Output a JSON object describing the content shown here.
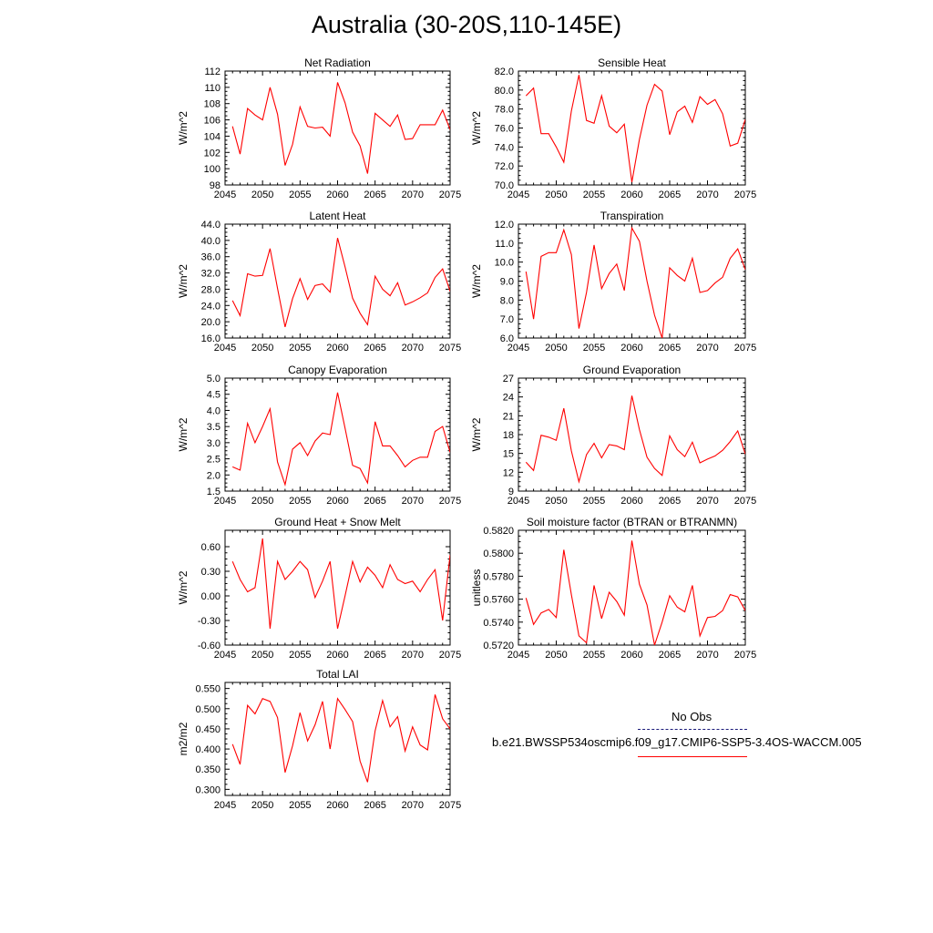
{
  "figure_title": "Australia (30-20S,110-145E)",
  "legend": {
    "obs_label": "No Obs",
    "model_label": "b.e21.BWSSP534oscmip6.f09_g17.CMIP6-SSP5-3.4OS-WACCM.005",
    "obs_color": "#1a1a7a",
    "model_color": "#ff0000"
  },
  "chart_data": [
    {
      "type": "line",
      "title": "Net Radiation",
      "ylabel": "W/m^2",
      "xlim": [
        2045,
        2075
      ],
      "ylim": [
        98,
        112
      ],
      "xticks": [
        2045,
        2050,
        2055,
        2060,
        2065,
        2070,
        2075
      ],
      "yticks": [
        "98",
        "100",
        "102",
        "104",
        "106",
        "108",
        "110",
        "112"
      ],
      "x": [
        2046,
        2047,
        2048,
        2049,
        2050,
        2051,
        2052,
        2053,
        2054,
        2055,
        2056,
        2057,
        2058,
        2059,
        2060,
        2061,
        2062,
        2063,
        2064,
        2065,
        2066,
        2067,
        2068,
        2069,
        2070,
        2071,
        2072,
        2073,
        2074,
        2075
      ],
      "series": [
        {
          "values": [
            105.2,
            101.8,
            107.4,
            106.6,
            106.0,
            110.0,
            106.7,
            100.4,
            103.0,
            107.6,
            105.2,
            105.0,
            105.1,
            104.0,
            110.6,
            108.1,
            104.5,
            102.8,
            99.4,
            106.8,
            106.0,
            105.2,
            106.6,
            103.6,
            103.7,
            105.4,
            105.4,
            105.4,
            107.2,
            104.8
          ]
        }
      ]
    },
    {
      "type": "line",
      "title": "Sensible Heat",
      "ylabel": "W/m^2",
      "xlim": [
        2045,
        2075
      ],
      "ylim": [
        70,
        82
      ],
      "xticks": [
        2045,
        2050,
        2055,
        2060,
        2065,
        2070,
        2075
      ],
      "yticks": [
        "70.0",
        "72.0",
        "74.0",
        "76.0",
        "78.0",
        "80.0",
        "82.0"
      ],
      "x": [
        2046,
        2047,
        2048,
        2049,
        2050,
        2051,
        2052,
        2053,
        2054,
        2055,
        2056,
        2057,
        2058,
        2059,
        2060,
        2061,
        2062,
        2063,
        2064,
        2065,
        2066,
        2067,
        2068,
        2069,
        2070,
        2071,
        2072,
        2073,
        2074,
        2075
      ],
      "series": [
        {
          "values": [
            79.4,
            80.2,
            75.4,
            75.4,
            74.0,
            72.4,
            77.8,
            81.6,
            76.8,
            76.5,
            79.4,
            76.2,
            75.5,
            76.4,
            70.3,
            74.8,
            78.4,
            80.6,
            79.9,
            75.3,
            77.7,
            78.3,
            76.6,
            79.3,
            78.5,
            79.0,
            77.5,
            74.1,
            74.4,
            76.9
          ]
        }
      ]
    },
    {
      "type": "line",
      "title": "Latent Heat",
      "ylabel": "W/m^2",
      "xlim": [
        2045,
        2075
      ],
      "ylim": [
        16,
        44
      ],
      "xticks": [
        2045,
        2050,
        2055,
        2060,
        2065,
        2070,
        2075
      ],
      "yticks": [
        "16.0",
        "20.0",
        "24.0",
        "28.0",
        "32.0",
        "36.0",
        "40.0",
        "44.0"
      ],
      "x": [
        2046,
        2047,
        2048,
        2049,
        2050,
        2051,
        2052,
        2053,
        2054,
        2055,
        2056,
        2057,
        2058,
        2059,
        2060,
        2061,
        2062,
        2063,
        2064,
        2065,
        2066,
        2067,
        2068,
        2069,
        2070,
        2071,
        2072,
        2073,
        2074,
        2075
      ],
      "series": [
        {
          "values": [
            25.2,
            21.5,
            31.8,
            31.2,
            31.4,
            38.0,
            28.2,
            18.7,
            25.7,
            30.6,
            25.5,
            28.9,
            29.3,
            27.3,
            40.6,
            33.5,
            25.8,
            22.1,
            19.3,
            31.2,
            28.0,
            26.4,
            29.6,
            24.1,
            24.9,
            25.9,
            27.1,
            30.9,
            33.0,
            27.5
          ]
        }
      ]
    },
    {
      "type": "line",
      "title": "Transpiration",
      "ylabel": "W/m^2",
      "xlim": [
        2045,
        2075
      ],
      "ylim": [
        6,
        12
      ],
      "xticks": [
        2045,
        2050,
        2055,
        2060,
        2065,
        2070,
        2075
      ],
      "yticks": [
        "6.0",
        "7.0",
        "8.0",
        "9.0",
        "10.0",
        "11.0",
        "12.0"
      ],
      "x": [
        2046,
        2047,
        2048,
        2049,
        2050,
        2051,
        2052,
        2053,
        2054,
        2055,
        2056,
        2057,
        2058,
        2059,
        2060,
        2061,
        2062,
        2063,
        2064,
        2065,
        2066,
        2067,
        2068,
        2069,
        2070,
        2071,
        2072,
        2073,
        2074,
        2075
      ],
      "series": [
        {
          "values": [
            9.5,
            7.0,
            10.3,
            10.5,
            10.5,
            11.7,
            10.4,
            6.5,
            8.4,
            10.9,
            8.6,
            9.4,
            9.9,
            8.5,
            11.8,
            11.1,
            9.0,
            7.2,
            6.0,
            9.7,
            9.3,
            9.0,
            10.2,
            8.4,
            8.5,
            8.9,
            9.2,
            10.2,
            10.7,
            9.6
          ]
        }
      ]
    },
    {
      "type": "line",
      "title": "Canopy Evaporation",
      "ylabel": "W/m^2",
      "xlim": [
        2045,
        2075
      ],
      "ylim": [
        1.5,
        5.0
      ],
      "xticks": [
        2045,
        2050,
        2055,
        2060,
        2065,
        2070,
        2075
      ],
      "yticks": [
        "1.5",
        "2.0",
        "2.5",
        "3.0",
        "3.5",
        "4.0",
        "4.5",
        "5.0"
      ],
      "x": [
        2046,
        2047,
        2048,
        2049,
        2050,
        2051,
        2052,
        2053,
        2054,
        2055,
        2056,
        2057,
        2058,
        2059,
        2060,
        2061,
        2062,
        2063,
        2064,
        2065,
        2066,
        2067,
        2068,
        2069,
        2070,
        2071,
        2072,
        2073,
        2074,
        2075
      ],
      "series": [
        {
          "values": [
            2.25,
            2.15,
            3.6,
            3.0,
            3.5,
            4.05,
            2.4,
            1.7,
            2.8,
            3.0,
            2.6,
            3.05,
            3.3,
            3.25,
            4.55,
            3.45,
            2.3,
            2.2,
            1.75,
            3.65,
            2.9,
            2.9,
            2.6,
            2.25,
            2.45,
            2.55,
            2.55,
            3.35,
            3.5,
            2.7
          ]
        }
      ]
    },
    {
      "type": "line",
      "title": "Ground Evaporation",
      "ylabel": "W/m^2",
      "xlim": [
        2045,
        2075
      ],
      "ylim": [
        9,
        27
      ],
      "xticks": [
        2045,
        2050,
        2055,
        2060,
        2065,
        2070,
        2075
      ],
      "yticks": [
        "9",
        "12",
        "15",
        "18",
        "21",
        "24",
        "27"
      ],
      "x": [
        2046,
        2047,
        2048,
        2049,
        2050,
        2051,
        2052,
        2053,
        2054,
        2055,
        2056,
        2057,
        2058,
        2059,
        2060,
        2061,
        2062,
        2063,
        2064,
        2065,
        2066,
        2067,
        2068,
        2069,
        2070,
        2071,
        2072,
        2073,
        2074,
        2075
      ],
      "series": [
        {
          "values": [
            13.6,
            12.3,
            17.9,
            17.6,
            17.1,
            22.2,
            15.4,
            10.5,
            14.8,
            16.6,
            14.3,
            16.4,
            16.2,
            15.6,
            24.2,
            18.8,
            14.4,
            12.6,
            11.5,
            17.8,
            15.6,
            14.5,
            16.8,
            13.5,
            14.1,
            14.6,
            15.5,
            16.9,
            18.6,
            14.9
          ]
        }
      ]
    },
    {
      "type": "line",
      "title": "Ground Heat + Snow Melt",
      "ylabel": "W/m^2",
      "xlim": [
        2045,
        2075
      ],
      "ylim": [
        -0.6,
        0.8
      ],
      "xticks": [
        2045,
        2050,
        2055,
        2060,
        2065,
        2070,
        2075
      ],
      "yticks": [
        "-0.60",
        "-0.30",
        "0.00",
        "0.30",
        "0.60"
      ],
      "ytick_values": [
        -0.6,
        -0.3,
        0,
        0.3,
        0.6
      ],
      "x": [
        2046,
        2047,
        2048,
        2049,
        2050,
        2051,
        2052,
        2053,
        2054,
        2055,
        2056,
        2057,
        2058,
        2059,
        2060,
        2061,
        2062,
        2063,
        2064,
        2065,
        2066,
        2067,
        2068,
        2069,
        2070,
        2071,
        2072,
        2073,
        2074,
        2075
      ],
      "series": [
        {
          "values": [
            0.42,
            0.2,
            0.05,
            0.1,
            0.7,
            -0.4,
            0.42,
            0.2,
            0.3,
            0.42,
            0.32,
            -0.02,
            0.18,
            0.42,
            -0.4,
            0.0,
            0.42,
            0.17,
            0.35,
            0.25,
            0.1,
            0.38,
            0.2,
            0.15,
            0.18,
            0.05,
            0.2,
            0.32,
            -0.3,
            0.5
          ]
        }
      ]
    },
    {
      "type": "line",
      "title": "Soil moisture factor (BTRAN or BTRANMN)",
      "ylabel": "unitless",
      "xlim": [
        2045,
        2075
      ],
      "ylim": [
        0.572,
        0.582
      ],
      "xticks": [
        2045,
        2050,
        2055,
        2060,
        2065,
        2070,
        2075
      ],
      "yticks": [
        "0.5720",
        "0.5740",
        "0.5760",
        "0.5780",
        "0.5800",
        "0.5820"
      ],
      "x": [
        2046,
        2047,
        2048,
        2049,
        2050,
        2051,
        2052,
        2053,
        2054,
        2055,
        2056,
        2057,
        2058,
        2059,
        2060,
        2061,
        2062,
        2063,
        2064,
        2065,
        2066,
        2067,
        2068,
        2069,
        2070,
        2071,
        2072,
        2073,
        2074,
        2075
      ],
      "series": [
        {
          "values": [
            0.5761,
            0.5738,
            0.5748,
            0.5751,
            0.5744,
            0.5803,
            0.5764,
            0.5728,
            0.5722,
            0.5772,
            0.5743,
            0.5766,
            0.5758,
            0.5746,
            0.5811,
            0.5773,
            0.5755,
            0.572,
            0.574,
            0.5763,
            0.5753,
            0.5749,
            0.5772,
            0.5728,
            0.5744,
            0.5745,
            0.575,
            0.5764,
            0.5762,
            0.575
          ]
        }
      ]
    },
    {
      "type": "line",
      "title": "Total LAI",
      "ylabel": "m2/m2",
      "xlim": [
        2045,
        2075
      ],
      "ylim": [
        0.285,
        0.565
      ],
      "xticks": [
        2045,
        2050,
        2055,
        2060,
        2065,
        2070,
        2075
      ],
      "yticks": [
        "0.300",
        "0.350",
        "0.400",
        "0.450",
        "0.500",
        "0.550"
      ],
      "ytick_values": [
        0.3,
        0.35,
        0.4,
        0.45,
        0.5,
        0.55
      ],
      "x": [
        2046,
        2047,
        2048,
        2049,
        2050,
        2051,
        2052,
        2053,
        2054,
        2055,
        2056,
        2057,
        2058,
        2059,
        2060,
        2061,
        2062,
        2063,
        2064,
        2065,
        2066,
        2067,
        2068,
        2069,
        2070,
        2071,
        2072,
        2073,
        2074,
        2075
      ],
      "series": [
        {
          "values": [
            0.412,
            0.362,
            0.508,
            0.487,
            0.525,
            0.518,
            0.478,
            0.342,
            0.408,
            0.49,
            0.42,
            0.46,
            0.518,
            0.4,
            0.525,
            0.498,
            0.468,
            0.37,
            0.318,
            0.445,
            0.52,
            0.455,
            0.48,
            0.395,
            0.455,
            0.41,
            0.398,
            0.535,
            0.475,
            0.45
          ]
        }
      ]
    }
  ]
}
